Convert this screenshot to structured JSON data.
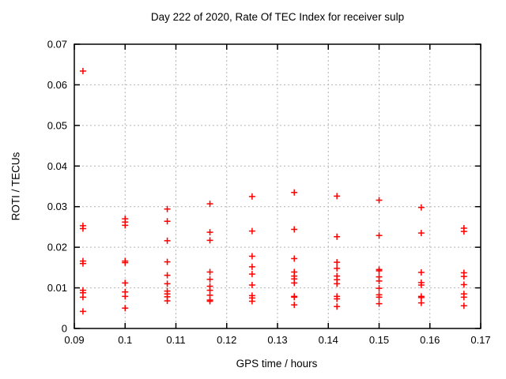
{
  "window": {
    "title": "Day 222 of 2020, Rate Of TEC Index for receiver sulp"
  },
  "chart_data": {
    "type": "scatter",
    "title": "Day 222 of 2020, Rate Of TEC Index for receiver sulp",
    "xlabel": "GPS time / hours",
    "ylabel": "ROTI / TECUs",
    "xlim": [
      0.09,
      0.17
    ],
    "ylim": [
      0,
      0.07
    ],
    "xticks": [
      0.09,
      0.1,
      0.11,
      0.12,
      0.13,
      0.14,
      0.15,
      0.16,
      0.17
    ],
    "xtick_labels": [
      "0.09",
      "0.1",
      "0.11",
      "0.12",
      "0.13",
      "0.14",
      "0.15",
      "0.16",
      "0.17"
    ],
    "yticks": [
      0,
      0.01,
      0.02,
      0.03,
      0.04,
      0.05,
      0.06,
      0.07
    ],
    "ytick_labels": [
      "0",
      "0.01",
      "0.02",
      "0.03",
      "0.04",
      "0.05",
      "0.06",
      "0.07"
    ],
    "grid": "dotted",
    "legend": "none",
    "marker_shape": "plus",
    "marker_color": "#ff0000",
    "grid_color": "#b4b4b4",
    "axis_color": "#000000",
    "background_color": "#ffffff",
    "series": [
      {
        "name": "ROTI",
        "points": [
          [
            0.0917,
            0.0634
          ],
          [
            0.0917,
            0.0253
          ],
          [
            0.0917,
            0.0246
          ],
          [
            0.0917,
            0.0166
          ],
          [
            0.0917,
            0.016
          ],
          [
            0.0917,
            0.0094
          ],
          [
            0.0917,
            0.0088
          ],
          [
            0.0917,
            0.0077
          ],
          [
            0.0917,
            0.0042
          ],
          [
            0.1,
            0.027
          ],
          [
            0.1,
            0.0262
          ],
          [
            0.1,
            0.0254
          ],
          [
            0.1,
            0.0166
          ],
          [
            0.1,
            0.0162
          ],
          [
            0.1,
            0.0112
          ],
          [
            0.1,
            0.009
          ],
          [
            0.1,
            0.0079
          ],
          [
            0.1,
            0.005
          ],
          [
            0.1083,
            0.0294
          ],
          [
            0.1083,
            0.0264
          ],
          [
            0.1083,
            0.0216
          ],
          [
            0.1083,
            0.0164
          ],
          [
            0.1083,
            0.0131
          ],
          [
            0.1083,
            0.011
          ],
          [
            0.1083,
            0.0092
          ],
          [
            0.1083,
            0.0085
          ],
          [
            0.1083,
            0.0078
          ],
          [
            0.1083,
            0.0068
          ],
          [
            0.1167,
            0.0307
          ],
          [
            0.1167,
            0.0237
          ],
          [
            0.1167,
            0.0217
          ],
          [
            0.1167,
            0.0139
          ],
          [
            0.1167,
            0.0121
          ],
          [
            0.1167,
            0.0104
          ],
          [
            0.1167,
            0.0094
          ],
          [
            0.1167,
            0.0082
          ],
          [
            0.1167,
            0.007
          ],
          [
            0.1167,
            0.0067
          ],
          [
            0.125,
            0.0325
          ],
          [
            0.125,
            0.024
          ],
          [
            0.125,
            0.0178
          ],
          [
            0.125,
            0.0152
          ],
          [
            0.125,
            0.0134
          ],
          [
            0.125,
            0.0107
          ],
          [
            0.125,
            0.0081
          ],
          [
            0.125,
            0.0075
          ],
          [
            0.125,
            0.0067
          ],
          [
            0.1333,
            0.0335
          ],
          [
            0.1333,
            0.0244
          ],
          [
            0.1333,
            0.0172
          ],
          [
            0.1333,
            0.0139
          ],
          [
            0.1333,
            0.0129
          ],
          [
            0.1333,
            0.0122
          ],
          [
            0.1333,
            0.0112
          ],
          [
            0.1333,
            0.0079
          ],
          [
            0.1333,
            0.0077
          ],
          [
            0.1333,
            0.0058
          ],
          [
            0.1417,
            0.0326
          ],
          [
            0.1417,
            0.0226
          ],
          [
            0.1417,
            0.0163
          ],
          [
            0.1417,
            0.0148
          ],
          [
            0.1417,
            0.0129
          ],
          [
            0.1417,
            0.012
          ],
          [
            0.1417,
            0.011
          ],
          [
            0.1417,
            0.0079
          ],
          [
            0.1417,
            0.0073
          ],
          [
            0.1417,
            0.0054
          ],
          [
            0.15,
            0.0316
          ],
          [
            0.15,
            0.0229
          ],
          [
            0.15,
            0.0145
          ],
          [
            0.15,
            0.0142
          ],
          [
            0.15,
            0.0127
          ],
          [
            0.15,
            0.0117
          ],
          [
            0.15,
            0.0099
          ],
          [
            0.15,
            0.0083
          ],
          [
            0.15,
            0.0077
          ],
          [
            0.15,
            0.0061
          ],
          [
            0.1583,
            0.0298
          ],
          [
            0.1583,
            0.0235
          ],
          [
            0.1583,
            0.0138
          ],
          [
            0.1583,
            0.0113
          ],
          [
            0.1583,
            0.0107
          ],
          [
            0.1583,
            0.0079
          ],
          [
            0.1583,
            0.0076
          ],
          [
            0.1583,
            0.0063
          ],
          [
            0.1667,
            0.0247
          ],
          [
            0.1667,
            0.0239
          ],
          [
            0.1667,
            0.0137
          ],
          [
            0.1667,
            0.0128
          ],
          [
            0.1667,
            0.0108
          ],
          [
            0.1667,
            0.0085
          ],
          [
            0.1667,
            0.0077
          ],
          [
            0.1667,
            0.0056
          ]
        ]
      }
    ]
  }
}
